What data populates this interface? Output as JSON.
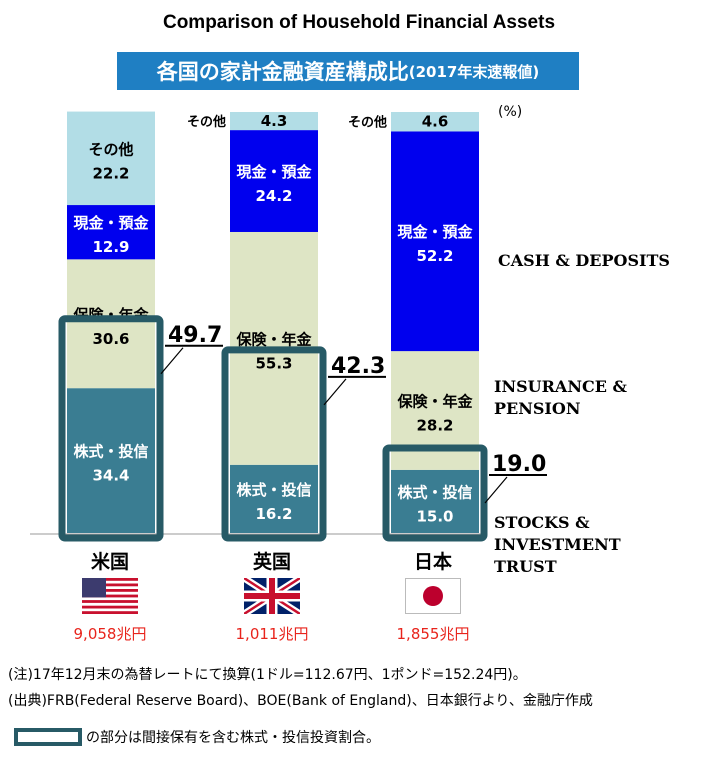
{
  "title": "Comparison of Household Financial Assets",
  "subtitle_main": "各国の家計金融資産構成比",
  "subtitle_note": "(2017年末速報値)",
  "unit": "(%)",
  "chart_data": {
    "type": "bar",
    "stacked": true,
    "ylim": [
      0,
      100
    ],
    "categories": [
      "米国",
      "英国",
      "日本"
    ],
    "series": [
      {
        "name": "株式・投信",
        "values": [
          34.4,
          16.2,
          15.0
        ],
        "color": "#3a7d92"
      },
      {
        "name": "保険・年金",
        "values": [
          30.6,
          55.3,
          28.2
        ],
        "color": "#dee5c5"
      },
      {
        "name": "現金・預金",
        "values": [
          12.9,
          24.2,
          52.2
        ],
        "color": "#0000ee"
      },
      {
        "name": "その他",
        "values": [
          22.2,
          4.3,
          4.6
        ],
        "color": "#b2dde6"
      }
    ],
    "stocks_incl_indirect": [
      49.7,
      42.3,
      19.0
    ],
    "category_titles": {
      "cash": [
        "CASH & DEPOSITS"
      ],
      "insurance": [
        "INSURANCE &",
        "PENSION"
      ],
      "stocks": [
        "STOCKS &",
        "INVESTMENT",
        "TRUST"
      ]
    },
    "totals": [
      "9,058兆円",
      "1,011兆円",
      "1,855兆円"
    ]
  },
  "footnotes": {
    "note": "(注)17年12月末の為替レートにて換算(1ドル=112.67円、1ポンド=152.24円)。",
    "source": "(出典)FRB(Federal Reserve Board)、BOE(Bank of England)、日本銀行より、金融庁作成",
    "legend": "の部分は間接保有を含む株式・投信投資割合。"
  },
  "colors": {
    "subtitle_bg": "#1f7fc3",
    "frame": "#275a66",
    "total_text": "#e8241c"
  }
}
